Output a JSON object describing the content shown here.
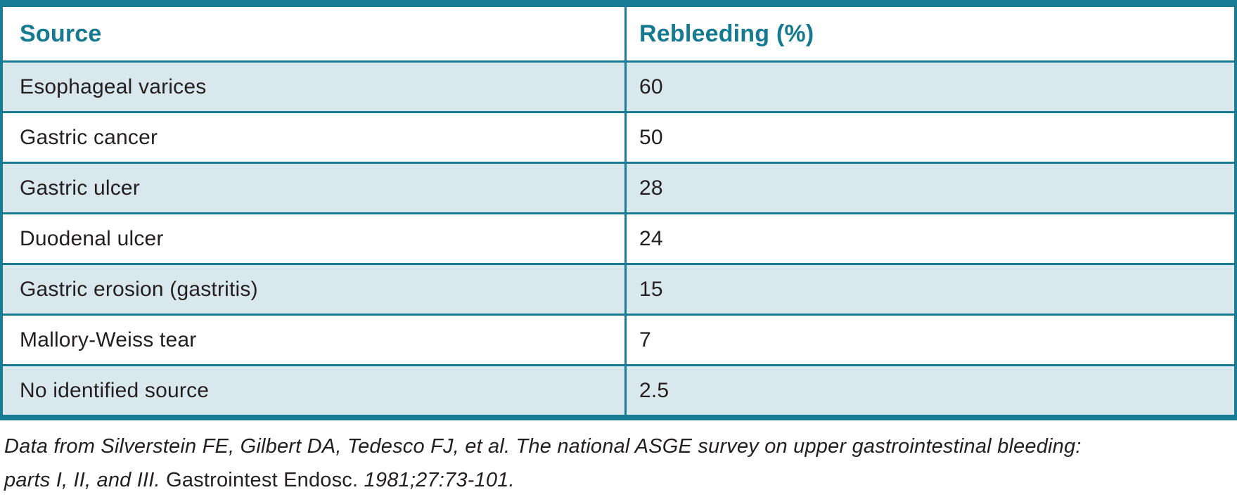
{
  "table": {
    "columns": [
      {
        "label": "Source"
      },
      {
        "label": "Rebleeding (%)"
      }
    ],
    "rows": [
      {
        "source": "Esophageal varices",
        "rebleeding": "60"
      },
      {
        "source": "Gastric cancer",
        "rebleeding": "50"
      },
      {
        "source": "Gastric ulcer",
        "rebleeding": "28"
      },
      {
        "source": "Duodenal ulcer",
        "rebleeding": "24"
      },
      {
        "source": "Gastric erosion (gastritis)",
        "rebleeding": "15"
      },
      {
        "source": "Mallory-Weiss tear",
        "rebleeding": "7"
      },
      {
        "source": "No identified source",
        "rebleeding": "2.5"
      }
    ]
  },
  "citation": {
    "line1": "Data from Silverstein FE, Gilbert DA, Tedesco FJ, et al. The national ASGE survey on upper gastrointestinal bleeding:",
    "line2_italic": "parts I, II, and III.",
    "line2_journal": "Gastrointest Endosc.",
    "line2_pages": "1981;27:73-101."
  },
  "colors": {
    "accent_teal": "#177c94",
    "header_text_teal": "#15798f",
    "row_alt_blue": "#d9e8ed",
    "body_text": "#231f20"
  },
  "chart_data": {
    "type": "table",
    "columns": [
      "Source",
      "Rebleeding (%)"
    ],
    "categories": [
      "Esophageal varices",
      "Gastric cancer",
      "Gastric ulcer",
      "Duodenal ulcer",
      "Gastric erosion (gastritis)",
      "Mallory-Weiss tear",
      "No identified source"
    ],
    "values": [
      60,
      50,
      28,
      24,
      15,
      7,
      2.5
    ],
    "title": "",
    "source_note": "Data from Silverstein FE, Gilbert DA, Tedesco FJ, et al. The national ASGE survey on upper gastrointestinal bleeding: parts I, II, and III. Gastrointest Endosc. 1981;27:73-101."
  }
}
